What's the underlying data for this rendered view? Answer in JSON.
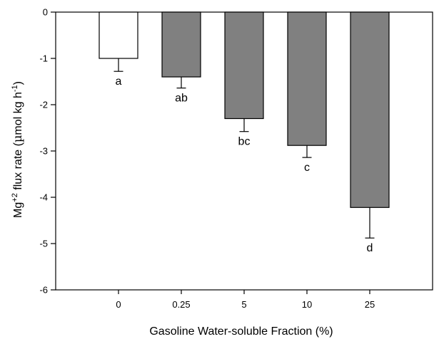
{
  "chart_data": {
    "type": "bar",
    "title": "",
    "xlabel": "Gasoline Water-soluble Fraction (%)",
    "ylabel": {
      "part1": "Mg",
      "sup1": "+2",
      "part2": " flux rate (",
      "mu": "µ",
      "part3": "mol kg h",
      "sup2": "-1",
      "part4": ")"
    },
    "ylim": [
      -6,
      0
    ],
    "yticks": [
      "0",
      "-1",
      "-2",
      "-3",
      "-4",
      "-5",
      "-6"
    ],
    "ytick_values": [
      0,
      -1,
      -2,
      -3,
      -4,
      -5,
      -6
    ],
    "categories": [
      "0",
      "0.25",
      "5",
      "10",
      "25"
    ],
    "values": [
      -1.0,
      -1.4,
      -2.3,
      -2.88,
      -4.22
    ],
    "errors": [
      0.28,
      0.24,
      0.28,
      0.26,
      0.66
    ],
    "letters": [
      "a",
      "ab",
      "bc",
      "c",
      "d"
    ],
    "colors": [
      "#ffffff",
      "#808080",
      "#808080",
      "#808080",
      "#808080"
    ],
    "grid": false,
    "legend": "none"
  }
}
